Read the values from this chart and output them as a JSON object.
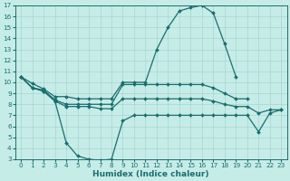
{
  "x": [
    0,
    1,
    2,
    3,
    4,
    5,
    6,
    7,
    8,
    9,
    10,
    11,
    12,
    13,
    14,
    15,
    16,
    17,
    18,
    19,
    20,
    21,
    22,
    23
  ],
  "curve_top": [
    10.5,
    9.9,
    9.4,
    8.7,
    8.7,
    8.5,
    8.5,
    8.5,
    8.5,
    10.0,
    10.0,
    10.0,
    13.0,
    15.0,
    16.5,
    16.8,
    17.0,
    16.3,
    13.5,
    10.5,
    null,
    null,
    null,
    null
  ],
  "curve_mid1": [
    10.5,
    9.5,
    9.3,
    8.4,
    8.0,
    8.0,
    8.0,
    8.0,
    8.0,
    9.8,
    9.8,
    9.8,
    9.8,
    9.8,
    9.8,
    9.8,
    9.8,
    9.5,
    9.0,
    8.5,
    8.5,
    null,
    null,
    null
  ],
  "curve_mid2": [
    10.5,
    9.5,
    9.2,
    8.3,
    7.8,
    7.8,
    7.8,
    7.6,
    7.6,
    8.5,
    8.5,
    8.5,
    8.5,
    8.5,
    8.5,
    8.5,
    8.5,
    8.3,
    8.0,
    7.8,
    7.8,
    7.2,
    7.5,
    7.5
  ],
  "curve_bot": [
    10.5,
    9.5,
    9.2,
    8.3,
    4.5,
    3.3,
    3.0,
    2.9,
    3.0,
    6.5,
    7.0,
    7.0,
    7.0,
    7.0,
    7.0,
    7.0,
    7.0,
    7.0,
    7.0,
    7.0,
    7.0,
    5.5,
    7.2,
    7.5
  ],
  "bg_color": "#c6ece8",
  "grid_color": "#a8d4d0",
  "line_color": "#1a6e6e",
  "xlabel": "Humidex (Indice chaleur)",
  "ylim": [
    3,
    17
  ],
  "ylim_display": [
    3,
    17
  ],
  "xlim": [
    -0.5,
    23.5
  ],
  "yticks": [
    3,
    4,
    5,
    6,
    7,
    8,
    9,
    10,
    11,
    12,
    13,
    14,
    15,
    16,
    17
  ],
  "xticks": [
    0,
    1,
    2,
    3,
    4,
    5,
    6,
    7,
    8,
    9,
    10,
    11,
    12,
    13,
    14,
    15,
    16,
    17,
    18,
    19,
    20,
    21,
    22,
    23
  ]
}
